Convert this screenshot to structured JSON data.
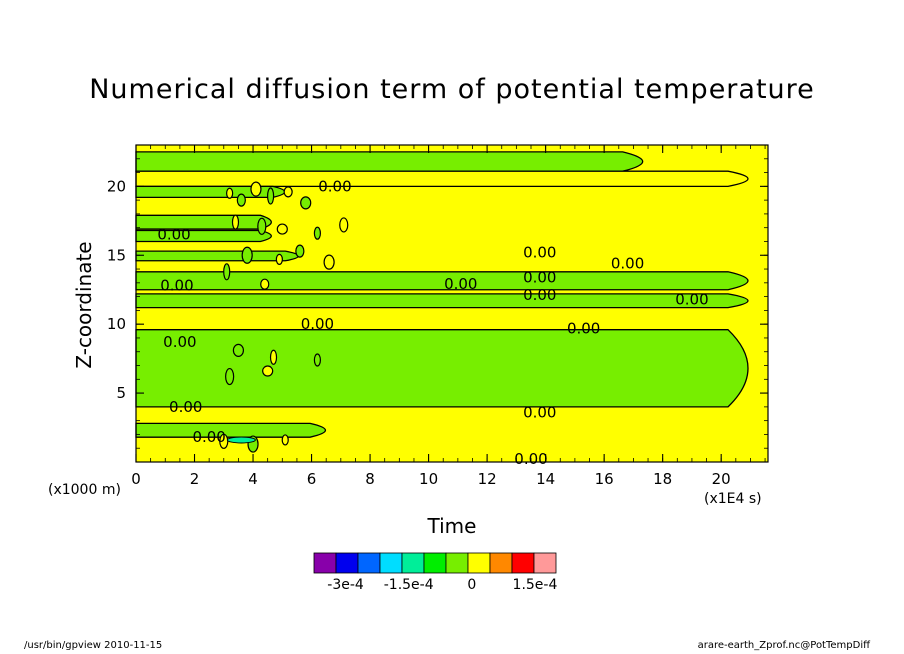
{
  "chart_data": {
    "type": "heatmap",
    "title": "Numerical diffusion term of potential temperature",
    "xlabel": "Time",
    "ylabel": "Z-coordinate",
    "x_unit": "(x1E4 s)",
    "y_unit": "(x1000 m)",
    "xlim": [
      0,
      21.6
    ],
    "ylim": [
      0,
      23
    ],
    "x_ticks": [
      0,
      2,
      4,
      6,
      8,
      10,
      12,
      14,
      16,
      18,
      20
    ],
    "x_tick_labels": [
      "0",
      "2",
      "4",
      "6",
      "8",
      "10",
      "12",
      "14",
      "16",
      "18",
      "20"
    ],
    "y_ticks": [
      5,
      10,
      15,
      20
    ],
    "y_tick_labels": [
      "5",
      "10",
      "15",
      "20"
    ],
    "contour_label": "0.00",
    "colorbar": {
      "colors": [
        "#8800aa",
        "#0000ee",
        "#0066ff",
        "#00ddff",
        "#00ee99",
        "#00ee00",
        "#77ee00",
        "#ffff00",
        "#ff8800",
        "#ff0000",
        "#ff9999"
      ],
      "labels": [
        "-3e-4",
        "-1.5e-4",
        "0",
        "1.5e-4"
      ],
      "label_values": [
        -0.0003,
        -0.00015,
        0,
        0.00015
      ],
      "min": -0.000375,
      "max": 0.0002
    },
    "bands": [
      {
        "sign": "negative",
        "z": [
          21.1,
          22.5
        ],
        "t_end": 18.0
      },
      {
        "sign": "positive",
        "z": [
          20.0,
          21.1
        ],
        "t_end": 21.6
      },
      {
        "sign": "negative",
        "z": [
          19.2,
          20.0
        ],
        "t_end": 5.5
      },
      {
        "sign": "negative",
        "z": [
          16.9,
          17.9
        ],
        "t_end": 5.0
      },
      {
        "sign": "negative",
        "z": [
          16.0,
          16.8
        ],
        "t_end": 5.0
      },
      {
        "sign": "negative",
        "z": [
          14.6,
          15.3
        ],
        "t_end": 6.0
      },
      {
        "sign": "negative",
        "z": [
          12.5,
          13.8
        ],
        "t_end": 21.6
      },
      {
        "sign": "negative",
        "z": [
          11.2,
          12.2
        ],
        "t_end": 21.6
      },
      {
        "sign": "negative",
        "z": [
          4.0,
          9.6
        ],
        "t_end": 21.6
      },
      {
        "sign": "negative",
        "z": [
          1.8,
          2.8
        ],
        "t_end": 7.0
      }
    ]
  },
  "footer": {
    "left": "/usr/bin/gpview  2010-11-15",
    "right": "arare-earth_Zprof.nc@PotTempDiff"
  }
}
